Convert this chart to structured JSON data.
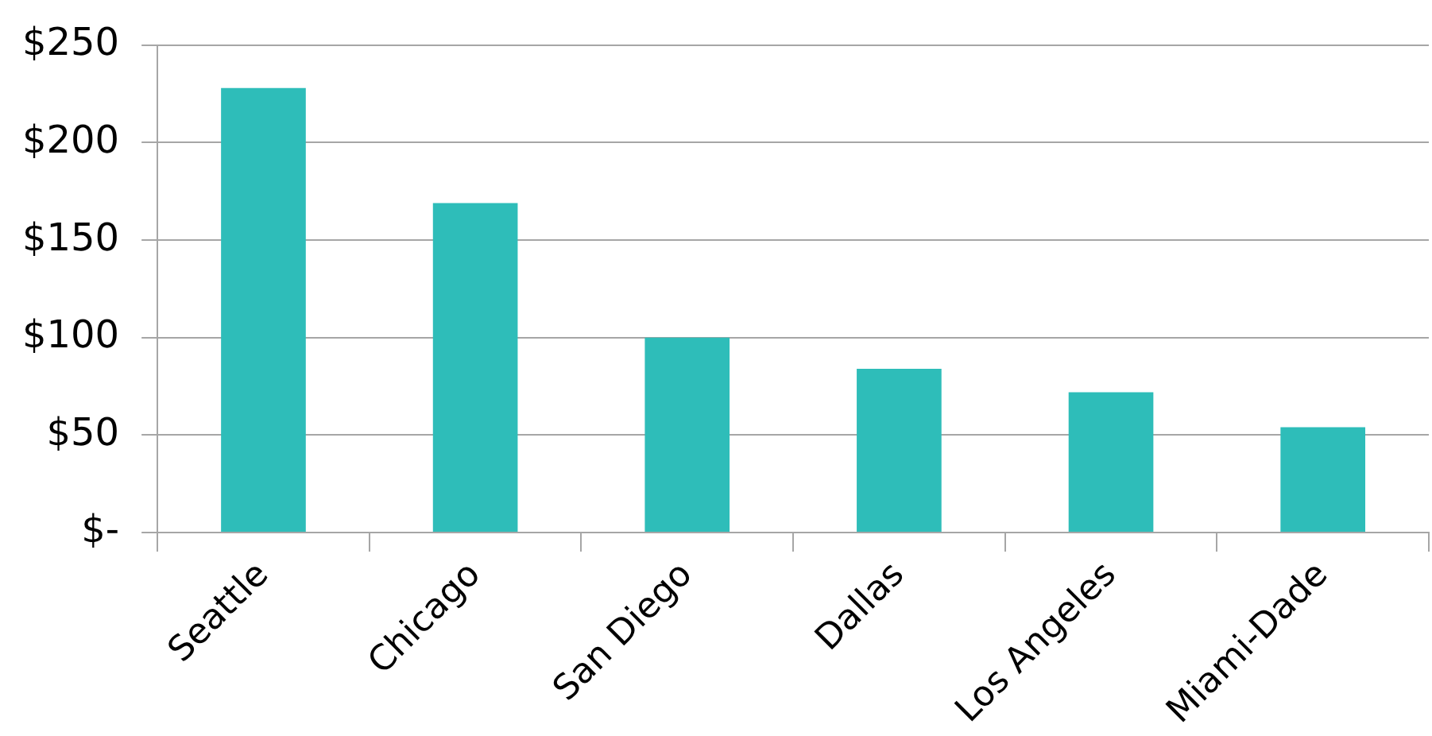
{
  "chart_data": {
    "type": "bar",
    "categories": [
      "Seattle",
      "Chicago",
      "San Diego",
      "Dallas",
      "Los Angeles",
      "Miami-Dade"
    ],
    "values": [
      228,
      169,
      100,
      84,
      72,
      54
    ],
    "color": "#2ebdb9",
    "ylim": [
      0,
      250
    ],
    "yticks": [
      {
        "value": 0,
        "label": "$-"
      },
      {
        "value": 50,
        "label": "$50"
      },
      {
        "value": 100,
        "label": "$100"
      },
      {
        "value": 150,
        "label": "$150"
      },
      {
        "value": 200,
        "label": "$200"
      },
      {
        "value": 250,
        "label": "$250"
      }
    ],
    "grid": "y"
  }
}
